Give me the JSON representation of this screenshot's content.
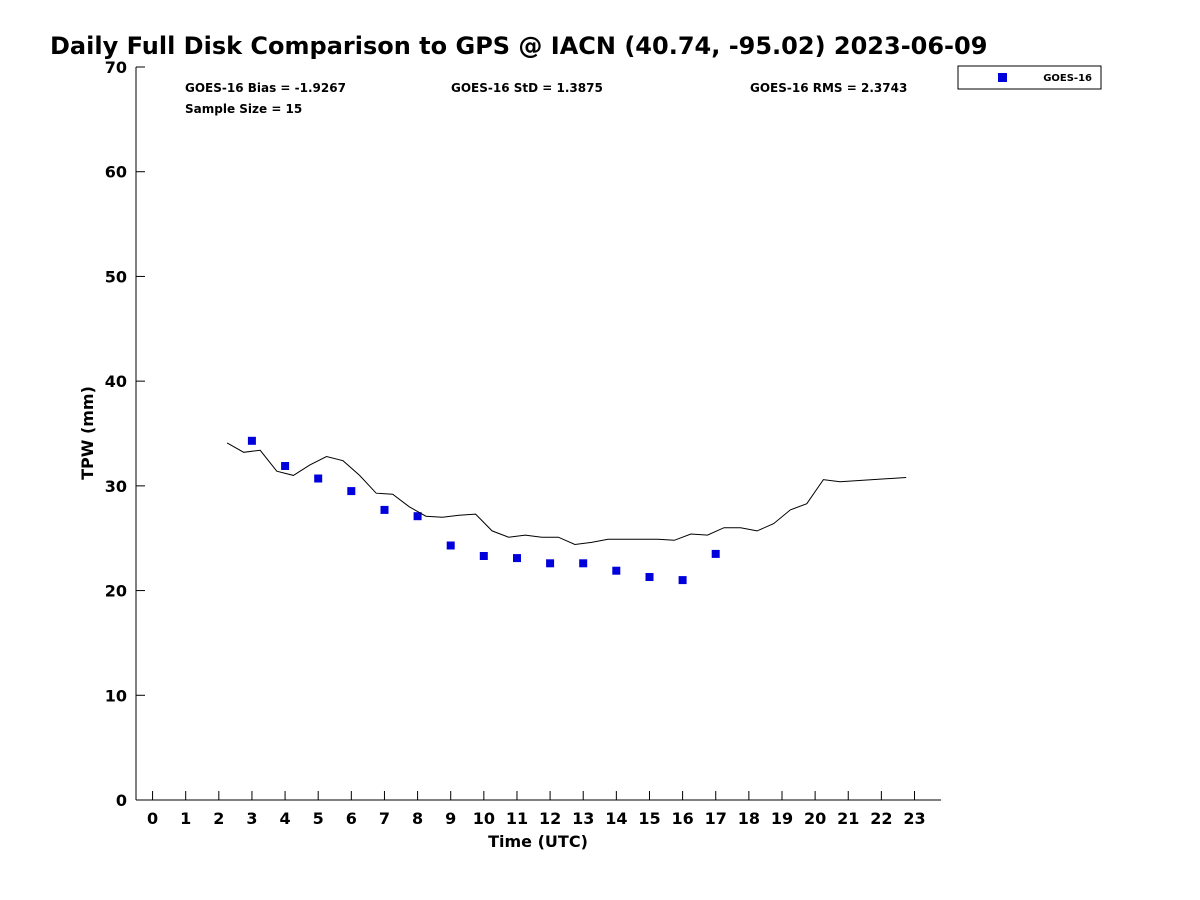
{
  "chart_data": {
    "type": "scatter",
    "title": "Daily Full Disk Comparison to GPS @ IACN (40.74, -95.02) 2023-06-09",
    "xlabel": "Time (UTC)",
    "ylabel": "TPW (mm)",
    "xlim": [
      -0.5,
      23.8
    ],
    "ylim": [
      0,
      70
    ],
    "x_ticks": [
      "0",
      "1",
      "2",
      "3",
      "4",
      "5",
      "6",
      "7",
      "8",
      "9",
      "10",
      "11",
      "12",
      "13",
      "14",
      "15",
      "16",
      "17",
      "18",
      "19",
      "20",
      "21",
      "22",
      "23"
    ],
    "y_ticks": [
      "0",
      "10",
      "20",
      "30",
      "40",
      "50",
      "60",
      "70"
    ],
    "grid": false,
    "legend_position": "top-right",
    "stats": {
      "bias": "GOES-16 Bias = -1.9267",
      "std": "GOES-16 StD = 1.3875",
      "rms": "GOES-16 RMS = 2.3743",
      "sample": "Sample Size = 15"
    },
    "series": [
      {
        "name": "GOES-16",
        "kind": "markers",
        "color": "#0000dd",
        "x": [
          3,
          4,
          5,
          6,
          7,
          8,
          9,
          10,
          11,
          12,
          13,
          14,
          15,
          16,
          17
        ],
        "y": [
          34.3,
          31.9,
          30.7,
          29.5,
          27.7,
          27.1,
          24.3,
          23.3,
          23.1,
          22.6,
          22.6,
          21.9,
          21.3,
          21.0,
          23.5
        ]
      },
      {
        "kind": "line",
        "color": "#000000",
        "x": [
          2.25,
          2.75,
          3.25,
          3.75,
          4.25,
          4.75,
          5.25,
          5.75,
          6.25,
          6.75,
          7.25,
          7.75,
          8.25,
          8.75,
          9.25,
          9.75,
          10.25,
          10.75,
          11.25,
          11.75,
          12.25,
          12.75,
          13.25,
          13.75,
          14.25,
          14.75,
          15.25,
          15.75,
          16.25,
          16.75,
          17.25,
          17.75,
          18.25,
          18.75,
          19.25,
          19.75,
          20.25,
          20.75,
          22.75
        ],
        "y": [
          34.1,
          33.2,
          33.4,
          31.4,
          31.0,
          32.0,
          32.8,
          32.4,
          31.0,
          29.3,
          29.2,
          28.0,
          27.1,
          27.0,
          27.2,
          27.3,
          25.7,
          25.1,
          25.3,
          25.1,
          25.1,
          24.4,
          24.6,
          24.9,
          24.9,
          24.9,
          24.9,
          24.8,
          25.4,
          25.3,
          26.0,
          26.0,
          25.7,
          26.4,
          27.7,
          28.3,
          30.6,
          30.4,
          30.8
        ]
      }
    ]
  }
}
